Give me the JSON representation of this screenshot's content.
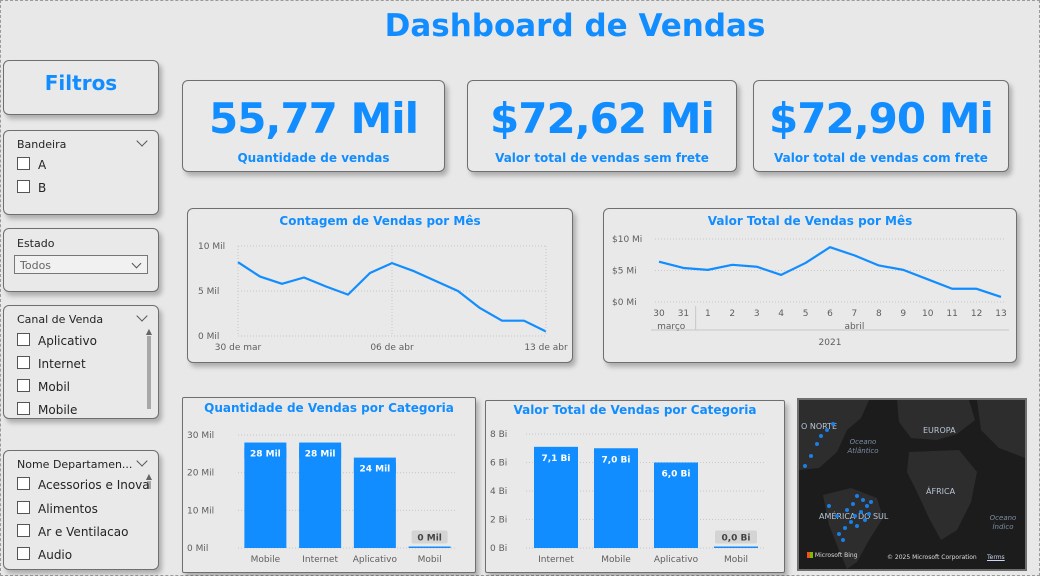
{
  "title": "Dashboard de Vendas",
  "filters": {
    "title": "Filtros",
    "bandeira": {
      "label": "Bandeira",
      "options": [
        "A",
        "B"
      ]
    },
    "estado": {
      "label": "Estado",
      "selected": "Todos"
    },
    "canal": {
      "label": "Canal de Venda",
      "options": [
        "Aplicativo",
        "Internet",
        "Mobil",
        "Mobile"
      ]
    },
    "departamento": {
      "label": "Nome Departamen...",
      "options": [
        "Acessorios e Inova...",
        "Alimentos",
        "Ar e Ventilacao",
        "Audio"
      ]
    }
  },
  "kpis": [
    {
      "value": "55,77 Mil",
      "label": "Quantidade de vendas"
    },
    {
      "value": "$72,62 Mi",
      "label": "Valor total de vendas sem frete"
    },
    {
      "value": "$72,90 Mi",
      "label": "Valor total de vendas com frete"
    }
  ],
  "colors": {
    "accent": "#118dff",
    "background": "#e8e8e8",
    "map_dots": "#1a7fe6"
  },
  "map": {
    "labels": {
      "north": "O NORTE",
      "europe": "EUROPA",
      "africa": "ÁFRICA",
      "south_america": "AMÉRICA DO SUL"
    },
    "oceans": {
      "atlantic": "Oceano\nAtlântico",
      "indian": "Oceano\nÍndico"
    },
    "attribution": "© 2025 Microsoft Corporation",
    "terms": "Terms",
    "bing": "Microsoft Bing"
  },
  "chart_data": [
    {
      "type": "line",
      "title": "Contagem de Vendas por Mês",
      "x": [
        "30 de mar",
        "31 de mar",
        "01 de abr",
        "02 de abr",
        "03 de abr",
        "04 de abr",
        "05 de abr",
        "06 de abr",
        "07 de abr",
        "08 de abr",
        "09 de abr",
        "10 de abr",
        "11 de abr",
        "12 de abr",
        "13 de abr"
      ],
      "xticks": [
        "30 de mar",
        "06 de abr",
        "13 de abr"
      ],
      "series": [
        {
          "values": [
            8.2,
            6.6,
            5.8,
            6.5,
            5.5,
            4.6,
            7.0,
            8.1,
            7.2,
            6.1,
            5.0,
            3.1,
            1.7,
            1.7,
            0.5
          ]
        }
      ],
      "ylim": [
        0,
        10
      ],
      "yticks": [
        "0 Mil",
        "5 Mil",
        "10 Mil"
      ],
      "grid": true
    },
    {
      "type": "line",
      "title": "Valor Total de Vendas por Mês",
      "x": [
        "30",
        "31",
        "1",
        "2",
        "3",
        "4",
        "5",
        "6",
        "7",
        "8",
        "9",
        "10",
        "11",
        "12",
        "13"
      ],
      "months": [
        {
          "label": "março",
          "first": "30"
        },
        {
          "label": "abril",
          "first": "1"
        }
      ],
      "year": "2021",
      "series": [
        {
          "values": [
            6.4,
            5.4,
            5.1,
            5.9,
            5.6,
            4.3,
            6.2,
            8.7,
            7.4,
            5.8,
            5.1,
            3.6,
            2.1,
            2.1,
            0.8
          ]
        }
      ],
      "ylim": [
        0,
        10
      ],
      "yticks": [
        "$0 Mi",
        "$5 Mi",
        "$10 Mi"
      ],
      "grid": true
    },
    {
      "type": "bar",
      "title": "Quantidade de Vendas por Categoria",
      "categories": [
        "Mobile",
        "Internet",
        "Aplicativo",
        "Mobil"
      ],
      "values": [
        28,
        28,
        24,
        0
      ],
      "data_labels": [
        "28 Mil",
        "28 Mil",
        "24 Mil",
        "0 Mil"
      ],
      "ylim": [
        0,
        30
      ],
      "yticks": [
        "0 Mil",
        "10 Mil",
        "20 Mil",
        "30 Mil"
      ],
      "grid": true
    },
    {
      "type": "bar",
      "title": "Valor Total de Vendas por Categoria",
      "categories": [
        "Internet",
        "Mobile",
        "Aplicativo",
        "Mobil"
      ],
      "values": [
        7.1,
        7.0,
        6.0,
        0.0
      ],
      "data_labels": [
        "7,1 Bi",
        "7,0 Bi",
        "6,0 Bi",
        "0,0 Bi"
      ],
      "ylim": [
        0,
        8
      ],
      "yticks": [
        "0 Bi",
        "2 Bi",
        "4 Bi",
        "6 Bi",
        "8 Bi"
      ],
      "grid": true
    }
  ]
}
